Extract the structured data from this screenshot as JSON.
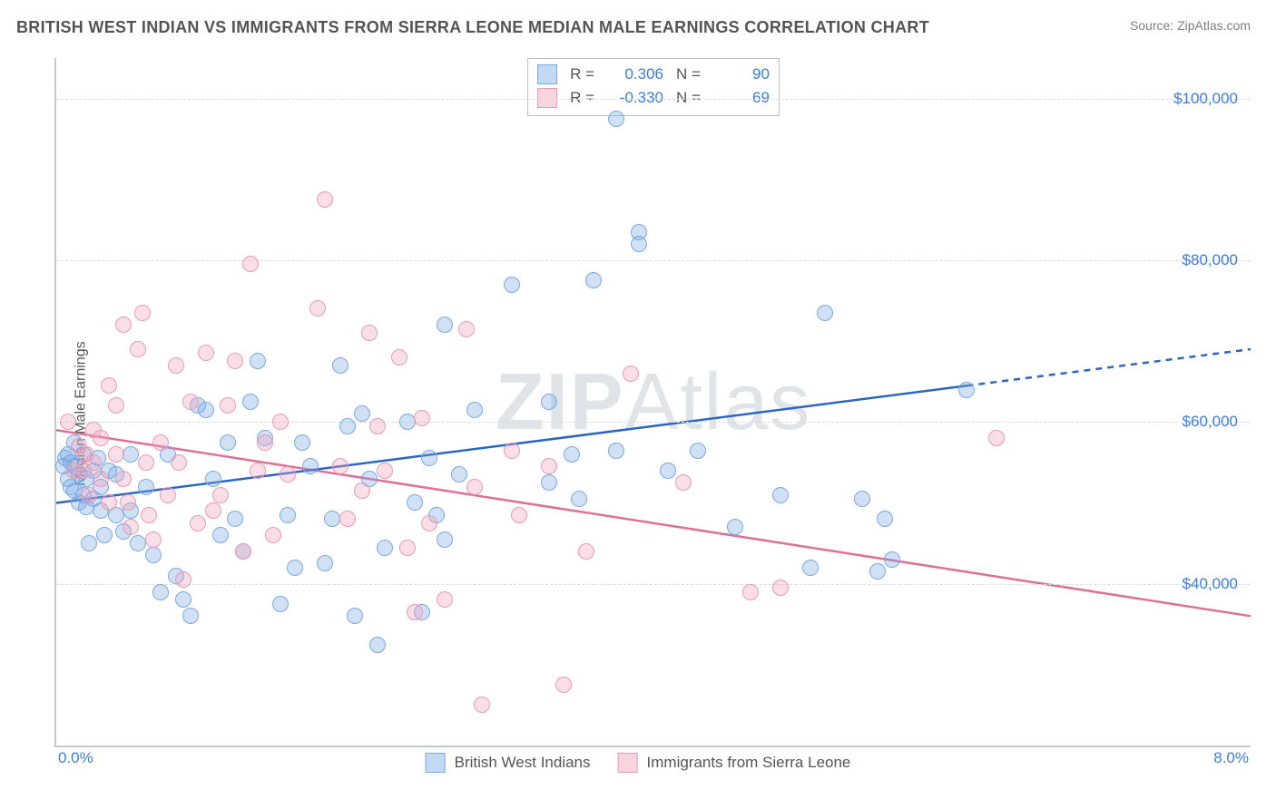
{
  "header": {
    "title": "BRITISH WEST INDIAN VS IMMIGRANTS FROM SIERRA LEONE MEDIAN MALE EARNINGS CORRELATION CHART",
    "source": "Source: ZipAtlas.com"
  },
  "chart": {
    "type": "scatter",
    "ylabel": "Median Male Earnings",
    "watermark_a": "ZIP",
    "watermark_b": "Atlas",
    "xlim": [
      0,
      8
    ],
    "ylim": [
      20000,
      105000
    ],
    "xtick_left": "0.0%",
    "xtick_right": "8.0%",
    "yticks": [
      {
        "v": 40000,
        "label": "$40,000"
      },
      {
        "v": 60000,
        "label": "$60,000"
      },
      {
        "v": 80000,
        "label": "$80,000"
      },
      {
        "v": 100000,
        "label": "$100,000"
      }
    ],
    "grid_color": "#dcdcdc",
    "axis_color": "#c9c9c9",
    "background_color": "#ffffff",
    "series": {
      "blue": {
        "label": "British West Indians",
        "fill": "rgba(120,170,230,0.35)",
        "stroke": "#7aa9e0",
        "trend_stroke": "#2b66c4",
        "trend": {
          "x1": 0,
          "y1": 50000,
          "x2": 8,
          "y2": 69000,
          "solid_until_x": 6.1
        },
        "R": "0.306",
        "N": "90",
        "points": [
          [
            0.05,
            54500
          ],
          [
            0.06,
            55500
          ],
          [
            0.08,
            53000
          ],
          [
            0.1,
            55000
          ],
          [
            0.1,
            52000
          ],
          [
            0.08,
            56000
          ],
          [
            0.12,
            51500
          ],
          [
            0.12,
            54500
          ],
          [
            0.15,
            50000
          ],
          [
            0.15,
            53500
          ],
          [
            0.18,
            56000
          ],
          [
            0.2,
            49500
          ],
          [
            0.2,
            53000
          ],
          [
            0.22,
            45000
          ],
          [
            0.25,
            54000
          ],
          [
            0.25,
            50500
          ],
          [
            0.12,
            57500
          ],
          [
            0.18,
            51000
          ],
          [
            0.28,
            55500
          ],
          [
            0.3,
            49000
          ],
          [
            0.3,
            52000
          ],
          [
            0.32,
            46000
          ],
          [
            0.35,
            54000
          ],
          [
            0.4,
            48500
          ],
          [
            0.4,
            53500
          ],
          [
            0.45,
            46500
          ],
          [
            0.5,
            56000
          ],
          [
            0.5,
            49000
          ],
          [
            0.55,
            45000
          ],
          [
            0.6,
            52000
          ],
          [
            0.65,
            43500
          ],
          [
            0.7,
            39000
          ],
          [
            0.75,
            56000
          ],
          [
            0.8,
            41000
          ],
          [
            0.85,
            38000
          ],
          [
            0.9,
            36000
          ],
          [
            0.95,
            62000
          ],
          [
            1.0,
            61500
          ],
          [
            1.05,
            53000
          ],
          [
            1.1,
            46000
          ],
          [
            1.15,
            57500
          ],
          [
            1.2,
            48000
          ],
          [
            1.25,
            44000
          ],
          [
            1.3,
            62500
          ],
          [
            1.35,
            67500
          ],
          [
            1.4,
            58000
          ],
          [
            1.5,
            37500
          ],
          [
            1.55,
            48500
          ],
          [
            1.6,
            42000
          ],
          [
            1.65,
            57500
          ],
          [
            1.7,
            54500
          ],
          [
            1.8,
            42500
          ],
          [
            1.85,
            48000
          ],
          [
            1.9,
            67000
          ],
          [
            1.95,
            59500
          ],
          [
            2.0,
            36000
          ],
          [
            2.05,
            61000
          ],
          [
            2.1,
            53000
          ],
          [
            2.15,
            32500
          ],
          [
            2.2,
            44500
          ],
          [
            2.35,
            60000
          ],
          [
            2.4,
            50000
          ],
          [
            2.45,
            36500
          ],
          [
            2.5,
            55500
          ],
          [
            2.55,
            48500
          ],
          [
            2.6,
            72000
          ],
          [
            2.6,
            45500
          ],
          [
            2.7,
            53500
          ],
          [
            2.8,
            61500
          ],
          [
            3.05,
            77000
          ],
          [
            3.3,
            62500
          ],
          [
            3.3,
            52500
          ],
          [
            3.45,
            56000
          ],
          [
            3.5,
            50500
          ],
          [
            3.6,
            77500
          ],
          [
            3.75,
            56500
          ],
          [
            3.75,
            97500
          ],
          [
            3.9,
            83500
          ],
          [
            3.9,
            82000
          ],
          [
            4.1,
            54000
          ],
          [
            4.55,
            47000
          ],
          [
            4.85,
            51000
          ],
          [
            5.05,
            42000
          ],
          [
            5.15,
            73500
          ],
          [
            5.4,
            50500
          ],
          [
            5.5,
            41500
          ],
          [
            5.55,
            48000
          ],
          [
            5.6,
            43000
          ],
          [
            6.1,
            64000
          ],
          [
            4.3,
            56500
          ]
        ]
      },
      "pink": {
        "label": "Immigrants from Sierra Leone",
        "fill": "rgba(240,160,185,0.35)",
        "stroke": "#e89ab5",
        "trend_stroke": "#e06f97",
        "trend": {
          "x1": 0,
          "y1": 59000,
          "x2": 8,
          "y2": 36000,
          "solid_until_x": 8
        },
        "R": "-0.330",
        "N": "69",
        "points": [
          [
            0.08,
            60000
          ],
          [
            0.12,
            54000
          ],
          [
            0.15,
            57000
          ],
          [
            0.18,
            54000
          ],
          [
            0.2,
            56000
          ],
          [
            0.22,
            51000
          ],
          [
            0.25,
            59000
          ],
          [
            0.25,
            55000
          ],
          [
            0.3,
            53000
          ],
          [
            0.3,
            58000
          ],
          [
            0.35,
            64500
          ],
          [
            0.35,
            50000
          ],
          [
            0.4,
            56000
          ],
          [
            0.4,
            62000
          ],
          [
            0.45,
            72000
          ],
          [
            0.45,
            53000
          ],
          [
            0.48,
            50000
          ],
          [
            0.5,
            47000
          ],
          [
            0.55,
            69000
          ],
          [
            0.58,
            73500
          ],
          [
            0.6,
            55000
          ],
          [
            0.62,
            48500
          ],
          [
            0.65,
            45500
          ],
          [
            0.7,
            57500
          ],
          [
            0.75,
            51000
          ],
          [
            0.8,
            67000
          ],
          [
            0.82,
            55000
          ],
          [
            0.85,
            40500
          ],
          [
            0.9,
            62500
          ],
          [
            0.95,
            47500
          ],
          [
            1.0,
            68500
          ],
          [
            1.05,
            49000
          ],
          [
            1.1,
            51000
          ],
          [
            1.15,
            62000
          ],
          [
            1.2,
            67500
          ],
          [
            1.25,
            44000
          ],
          [
            1.3,
            79500
          ],
          [
            1.35,
            54000
          ],
          [
            1.4,
            57500
          ],
          [
            1.45,
            46000
          ],
          [
            1.5,
            60000
          ],
          [
            1.55,
            53500
          ],
          [
            1.75,
            74000
          ],
          [
            1.8,
            87500
          ],
          [
            1.9,
            54500
          ],
          [
            1.95,
            48000
          ],
          [
            2.05,
            51500
          ],
          [
            2.1,
            71000
          ],
          [
            2.15,
            59500
          ],
          [
            2.2,
            54000
          ],
          [
            2.3,
            68000
          ],
          [
            2.35,
            44500
          ],
          [
            2.4,
            36500
          ],
          [
            2.45,
            60500
          ],
          [
            2.5,
            47500
          ],
          [
            2.6,
            38000
          ],
          [
            2.75,
            71500
          ],
          [
            2.8,
            52000
          ],
          [
            2.85,
            25000
          ],
          [
            3.05,
            56500
          ],
          [
            3.1,
            48500
          ],
          [
            3.3,
            54500
          ],
          [
            3.4,
            27500
          ],
          [
            3.55,
            44000
          ],
          [
            3.85,
            66000
          ],
          [
            4.2,
            52500
          ],
          [
            4.65,
            39000
          ],
          [
            4.85,
            39500
          ],
          [
            6.3,
            58000
          ]
        ]
      }
    },
    "stats_legend_labels": {
      "R": "R =",
      "N": "N ="
    },
    "axis_label_color": "#3a7de0",
    "text_color": "#555555",
    "title_color": "#545454",
    "point_radius": 9,
    "line_width": 2.5
  }
}
